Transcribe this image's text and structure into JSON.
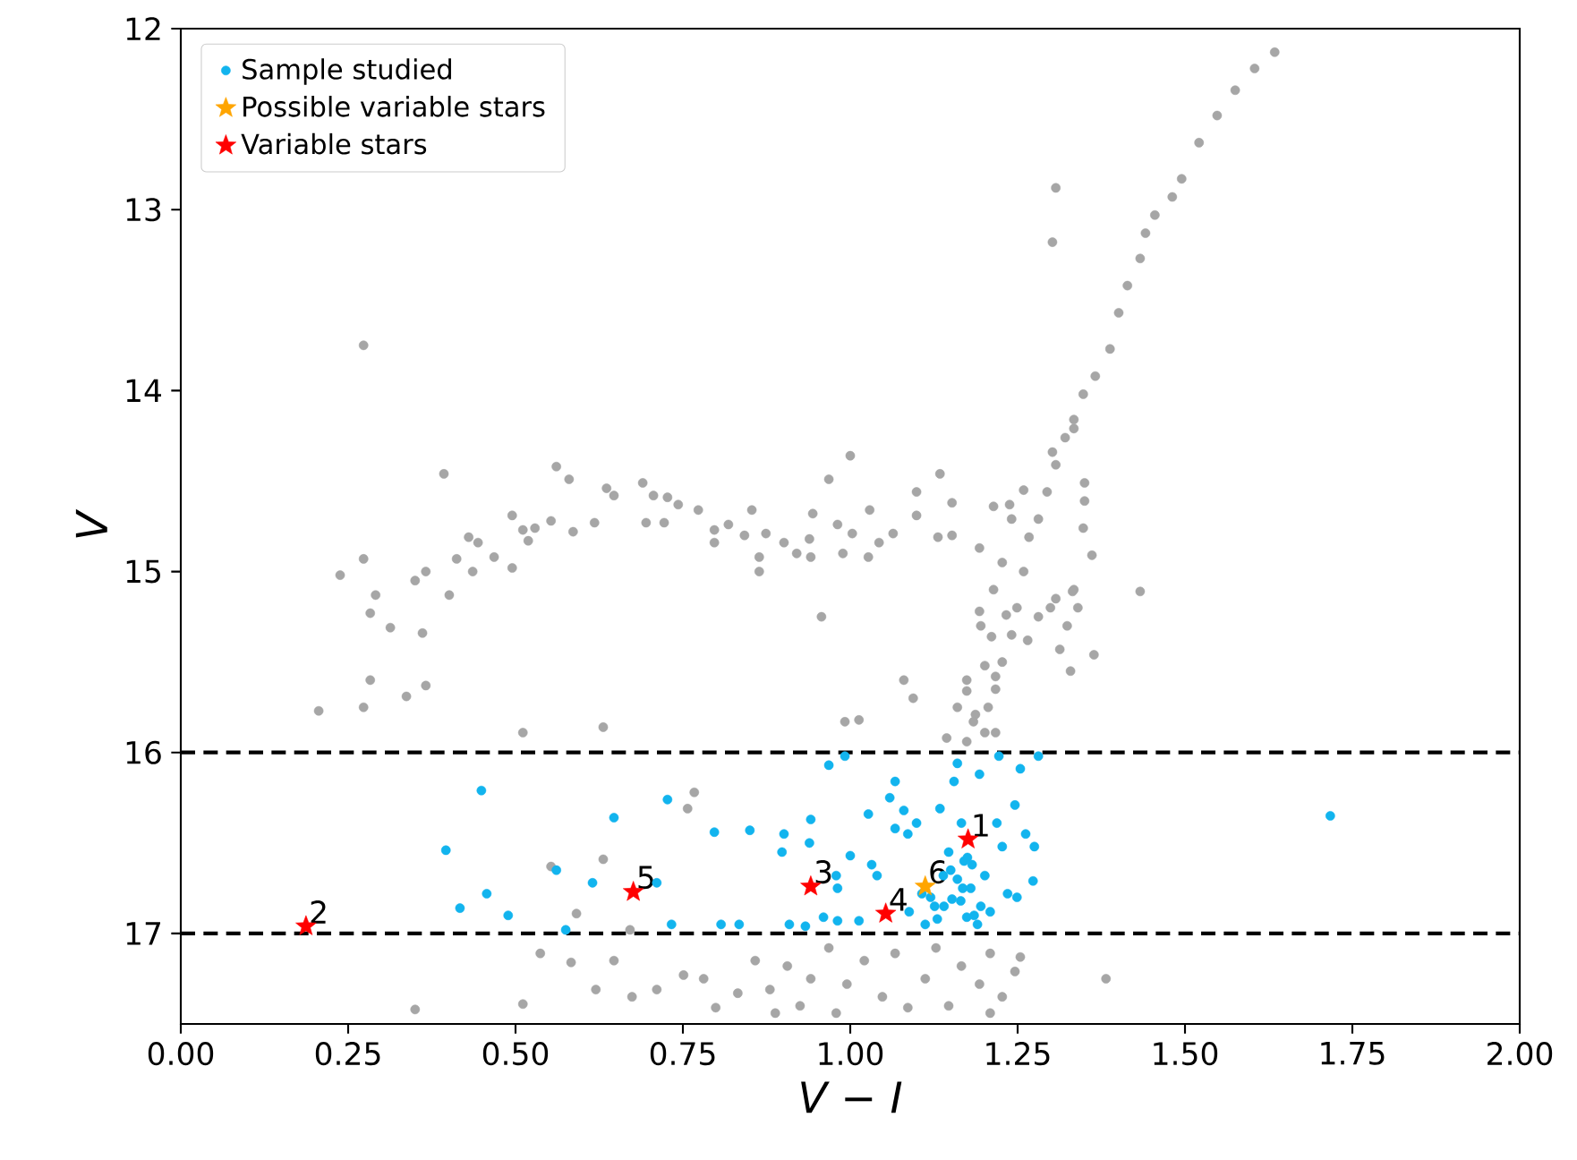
{
  "chart_data": {
    "type": "scatter",
    "xlabel": "V − I",
    "ylabel": "V",
    "xlim": [
      0,
      2
    ],
    "ylim": [
      17.5,
      12
    ],
    "xticks": [
      {
        "value": 0,
        "label": "0.00"
      },
      {
        "value": 0.25,
        "label": "0.25"
      },
      {
        "value": 0.5,
        "label": "0.50"
      },
      {
        "value": 0.75,
        "label": "0.75"
      },
      {
        "value": 1,
        "label": "1.00"
      },
      {
        "value": 1.25,
        "label": "1.25"
      },
      {
        "value": 1.5,
        "label": "1.50"
      },
      {
        "value": 1.75,
        "label": "1.75"
      },
      {
        "value": 2,
        "label": "2.00"
      }
    ],
    "yticks": [
      12,
      13,
      14,
      15,
      16,
      17
    ],
    "legend": "top left",
    "series": [
      {
        "marker": "circle",
        "color": "#a6a6a6",
        "x": [
          1.634,
          1.604,
          1.575,
          1.548,
          1.521,
          1.495,
          1.481,
          1.455,
          1.441,
          1.433,
          1.414,
          1.401,
          1.388,
          1.366,
          1.348,
          1.334,
          1.321,
          1.307,
          1.302,
          1.307,
          1.294,
          1.281,
          1.267,
          1.259,
          1.249,
          1.241,
          1.227,
          1.217,
          1.206,
          1.201,
          1.187,
          1.174,
          1.195,
          1.214,
          1.227,
          1.241,
          1.174,
          1.16,
          1.281,
          1.307,
          1.334,
          1.361,
          1.348,
          1.433,
          1.193,
          1.214,
          1.238,
          1.259,
          1.302,
          1.334,
          1.193,
          1.233,
          1.211,
          1.265,
          1.201,
          1.217,
          1.174,
          1.313,
          1.329,
          1.364,
          1.324,
          1.34,
          1.35,
          1.35,
          1.332,
          1.299,
          1.184,
          1.144,
          1.217,
          0.273,
          0.206,
          0.238,
          0.273,
          0.273,
          0.283,
          0.291,
          0.283,
          0.313,
          0.337,
          0.35,
          0.366,
          0.361,
          0.366,
          0.393,
          0.401,
          0.412,
          0.43,
          0.436,
          0.444,
          0.468,
          0.495,
          0.495,
          0.511,
          0.519,
          0.529,
          0.553,
          0.561,
          0.58,
          0.586,
          0.618,
          0.636,
          0.647,
          0.69,
          0.695,
          0.706,
          0.722,
          0.727,
          0.743,
          0.773,
          0.797,
          0.797,
          0.818,
          0.842,
          0.853,
          0.864,
          0.864,
          0.874,
          0.901,
          0.92,
          0.939,
          0.941,
          0.944,
          0.957,
          0.968,
          0.981,
          0.989,
          1.0,
          1.003,
          1.027,
          1.029,
          1.043,
          1.064,
          1.08,
          1.094,
          1.099,
          1.099,
          1.134,
          1.131,
          1.152,
          1.152,
          0.992,
          1.013,
          0.511,
          0.631,
          0.757,
          0.767,
          0.631,
          0.553,
          0.591,
          0.671,
          0.35,
          0.511,
          0.537,
          0.583,
          0.62,
          0.647,
          0.674,
          0.711,
          0.751,
          0.781,
          0.799,
          0.832,
          0.858,
          0.88,
          0.888,
          0.906,
          0.925,
          0.941,
          0.968,
          0.979,
          0.995,
          1.021,
          1.048,
          1.067,
          1.086,
          1.112,
          1.128,
          1.147,
          1.166,
          1.193,
          1.209,
          1.209,
          1.227,
          1.246,
          1.254,
          1.382
        ],
        "values": [
          12.13,
          12.22,
          12.34,
          12.48,
          12.63,
          12.83,
          12.93,
          13.03,
          13.13,
          13.27,
          13.42,
          13.57,
          13.77,
          13.92,
          14.02,
          14.16,
          14.26,
          14.41,
          13.18,
          12.88,
          14.56,
          14.71,
          14.81,
          15.0,
          15.2,
          15.35,
          15.5,
          15.65,
          15.75,
          15.89,
          15.79,
          15.6,
          15.3,
          15.1,
          14.95,
          14.71,
          15.94,
          15.75,
          15.25,
          15.15,
          15.1,
          14.91,
          14.76,
          15.11,
          14.87,
          14.64,
          14.63,
          14.55,
          14.34,
          14.21,
          15.22,
          15.24,
          15.36,
          15.38,
          15.52,
          15.58,
          15.66,
          15.43,
          15.55,
          15.46,
          15.3,
          15.2,
          14.61,
          14.51,
          15.11,
          15.2,
          15.83,
          15.92,
          15.89,
          13.75,
          15.77,
          15.02,
          14.93,
          15.75,
          15.23,
          15.13,
          15.6,
          15.31,
          15.69,
          15.05,
          15.0,
          15.34,
          15.63,
          14.46,
          15.13,
          14.93,
          14.81,
          15.0,
          14.84,
          14.92,
          14.69,
          14.98,
          14.77,
          14.83,
          14.76,
          14.72,
          14.42,
          14.49,
          14.78,
          14.73,
          14.54,
          14.58,
          14.51,
          14.73,
          14.58,
          14.73,
          14.59,
          14.63,
          14.66,
          14.77,
          14.84,
          14.74,
          14.8,
          14.66,
          14.92,
          15.0,
          14.79,
          14.84,
          14.9,
          14.82,
          14.92,
          14.68,
          15.25,
          14.49,
          14.74,
          14.9,
          14.36,
          14.79,
          14.92,
          14.66,
          14.84,
          14.79,
          15.6,
          15.7,
          14.56,
          14.69,
          14.46,
          14.81,
          14.62,
          14.8,
          15.83,
          15.82,
          15.89,
          15.86,
          16.31,
          16.22,
          16.59,
          16.63,
          16.89,
          16.98,
          17.42,
          17.39,
          17.11,
          17.16,
          17.31,
          17.15,
          17.35,
          17.31,
          17.23,
          17.25,
          17.41,
          17.33,
          17.15,
          17.31,
          17.44,
          17.18,
          17.4,
          17.25,
          17.08,
          17.44,
          17.28,
          17.15,
          17.35,
          17.11,
          17.41,
          17.25,
          17.08,
          17.4,
          17.18,
          17.28,
          17.11,
          17.44,
          17.35,
          17.21,
          17.13,
          17.25
        ]
      },
      {
        "marker": "circle",
        "name": "Sample studied",
        "color": "#12b4ee",
        "x": [
          0.449,
          0.396,
          0.417,
          0.457,
          0.489,
          0.561,
          0.575,
          0.615,
          0.647,
          0.711,
          0.727,
          0.733,
          0.797,
          0.807,
          0.834,
          0.85,
          0.901,
          0.898,
          0.909,
          0.939,
          0.941,
          0.968,
          0.992,
          0.979,
          0.981,
          1.0,
          0.933,
          0.96,
          0.981,
          1.013,
          1.027,
          1.032,
          1.04,
          1.059,
          1.067,
          1.067,
          1.08,
          1.086,
          1.088,
          1.099,
          1.107,
          1.112,
          1.126,
          1.134,
          1.139,
          1.147,
          1.152,
          1.155,
          1.16,
          1.166,
          1.168,
          1.174,
          1.182,
          1.193,
          1.195,
          1.201,
          1.209,
          1.219,
          1.222,
          1.227,
          1.235,
          1.246,
          1.249,
          1.254,
          1.262,
          1.273,
          1.275,
          1.281,
          1.717,
          1.15,
          1.16,
          1.17,
          1.18,
          1.165,
          1.185,
          1.14,
          1.175,
          1.19,
          1.13,
          1.12
        ],
        "values": [
          16.21,
          16.54,
          16.86,
          16.78,
          16.9,
          16.65,
          16.98,
          16.72,
          16.36,
          16.72,
          16.26,
          16.95,
          16.44,
          16.95,
          16.95,
          16.43,
          16.45,
          16.55,
          16.95,
          16.5,
          16.37,
          16.07,
          16.02,
          16.68,
          16.75,
          16.57,
          16.96,
          16.91,
          16.93,
          16.93,
          16.34,
          16.62,
          16.68,
          16.25,
          16.16,
          16.42,
          16.32,
          16.45,
          16.88,
          16.39,
          16.78,
          16.95,
          16.85,
          16.31,
          16.68,
          16.55,
          16.81,
          16.16,
          16.06,
          16.39,
          16.75,
          16.91,
          16.62,
          16.12,
          16.85,
          16.68,
          16.88,
          16.39,
          16.02,
          16.52,
          16.78,
          16.29,
          16.8,
          16.09,
          16.45,
          16.71,
          16.52,
          16.02,
          16.35,
          16.65,
          16.7,
          16.6,
          16.75,
          16.82,
          16.9,
          16.85,
          16.58,
          16.95,
          16.92,
          16.8
        ]
      },
      {
        "marker": "star",
        "name": "Possible variable stars",
        "color": "#ffa500",
        "x": [
          1.112
        ],
        "values": [
          16.74
        ]
      },
      {
        "marker": "star",
        "name": "Variable stars",
        "color": "#ff0000",
        "x": [
          1.176,
          0.187,
          0.941,
          1.053,
          0.676
        ],
        "values": [
          16.48,
          16.96,
          16.74,
          16.89,
          16.77
        ]
      }
    ],
    "ref_lines": [
      {
        "axis": "y",
        "value": 16,
        "color": "#000000",
        "line_style": "dashed"
      },
      {
        "axis": "y",
        "value": 17,
        "color": "#000000",
        "line_style": "dashed"
      }
    ],
    "annotations": [
      {
        "text": "1",
        "x": 1.176,
        "y": 16.48
      },
      {
        "text": "2",
        "x": 0.187,
        "y": 16.96
      },
      {
        "text": "3",
        "x": 0.941,
        "y": 16.74
      },
      {
        "text": "4",
        "x": 1.053,
        "y": 16.89
      },
      {
        "text": "5",
        "x": 0.676,
        "y": 16.77
      },
      {
        "text": "6",
        "x": 1.112,
        "y": 16.74
      }
    ]
  }
}
